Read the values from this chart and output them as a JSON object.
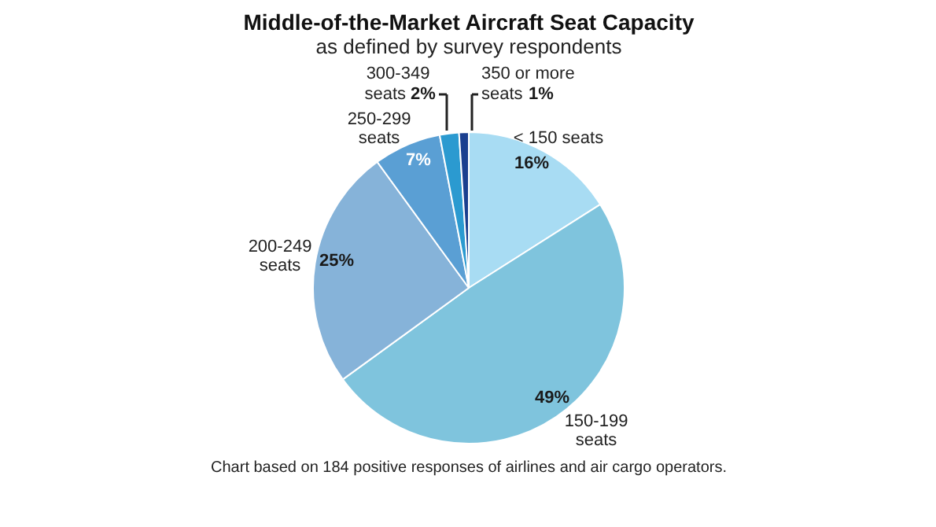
{
  "chart_data": {
    "type": "pie",
    "title": "Middle-of-the-Market Aircraft Seat Capacity",
    "subtitle": "as defined by survey respondents",
    "categories": [
      "< 150 seats",
      "150-199 seats",
      "200-249 seats",
      "250-299 seats",
      "300-349 seats",
      "350 or more seats"
    ],
    "values": [
      16,
      49,
      25,
      7,
      2,
      1
    ],
    "colors": [
      "#a8dcf3",
      "#7fc4dd",
      "#86b3d9",
      "#5a9fd4",
      "#2b9ad0",
      "#1a3f8f"
    ],
    "value_labels": [
      "16%",
      "49%",
      "25%",
      "7%",
      "2%",
      "1%"
    ],
    "annotations": [
      "Chart based on 184 positive responses of airlines and air cargo operators."
    ]
  }
}
